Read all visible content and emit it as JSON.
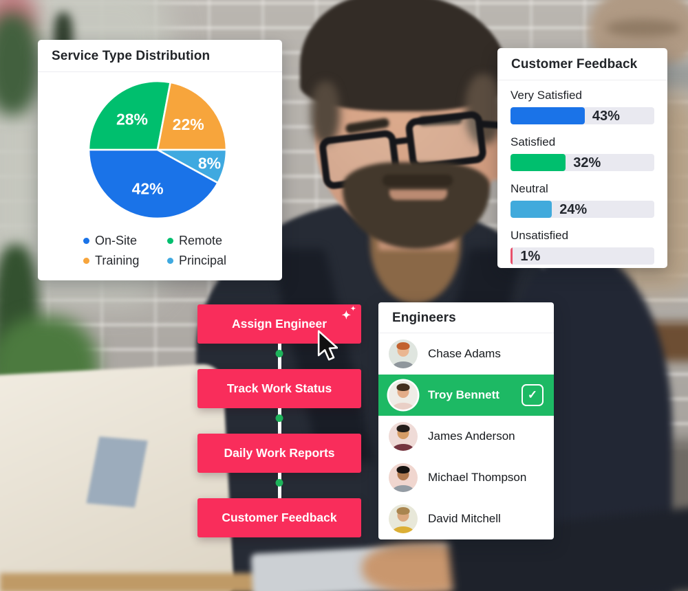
{
  "service_card": {
    "title": "Service Type Distribution",
    "chart_data": {
      "type": "pie",
      "start_angle_deg": 180,
      "value_suffix": "%",
      "slices": [
        {
          "label": "Remote",
          "value": 28,
          "color": "#00BF6E"
        },
        {
          "label": "Training",
          "value": 22,
          "color": "#F7A53C"
        },
        {
          "label": "Principal",
          "value": 8,
          "color": "#3FA9E0"
        },
        {
          "label": "On-Site",
          "value": 42,
          "color": "#1A73E8"
        }
      ],
      "legend": [
        {
          "label": "On-Site",
          "color": "#1A73E8"
        },
        {
          "label": "Remote",
          "color": "#00BF6E"
        },
        {
          "label": "Training",
          "color": "#F7A53C"
        },
        {
          "label": "Principal",
          "color": "#3FA9E0"
        }
      ],
      "legend_position": "bottom"
    }
  },
  "feedback_card": {
    "title": "Customer Feedback",
    "chart_data": {
      "type": "bar",
      "orientation": "horizontal",
      "categories": [
        "Very Satisfied",
        "Satisfied",
        "Neutral",
        "Unsatisfied"
      ],
      "values": [
        43,
        32,
        24,
        1
      ],
      "colors": [
        "#1A73E8",
        "#00BF6E",
        "#41AADC",
        "#E8506B"
      ],
      "value_suffix": "%",
      "track_color": "#E9E9F0"
    }
  },
  "action_menu": {
    "button_color": "#F92D5B",
    "connector_color": "#FFFFFF",
    "connector_dot_color": "#1EB35B",
    "buttons": [
      {
        "label": "Assign Engineer",
        "sparkle": true,
        "cursor": true
      },
      {
        "label": "Track Work Status"
      },
      {
        "label": "Daily Work Reports"
      },
      {
        "label": "Customer Feedback"
      }
    ]
  },
  "engineers_card": {
    "title": "Engineers",
    "selected_color": "#1DB964",
    "checkmark_glyph": "✓",
    "engineers": [
      {
        "name": "Chase Adams",
        "selected": false,
        "avatar": {
          "bg": "#dfe5df",
          "hair": "#c2622f",
          "skin": "#eab691",
          "shirt": "#8f969c"
        }
      },
      {
        "name": "Troy Bennett",
        "selected": true,
        "avatar": {
          "bg": "#efece6",
          "hair": "#43301f",
          "skin": "#e3ad89",
          "shirt": "#e9cfc6"
        }
      },
      {
        "name": "James Anderson",
        "selected": false,
        "avatar": {
          "bg": "#efdbd7",
          "hair": "#241d1a",
          "skin": "#d59c66",
          "shirt": "#74343f"
        }
      },
      {
        "name": "Michael Thompson",
        "selected": false,
        "avatar": {
          "bg": "#f0d6cf",
          "hair": "#181310",
          "skin": "#b27a50",
          "shirt": "#949ca4"
        }
      },
      {
        "name": "David Mitchell",
        "selected": false,
        "avatar": {
          "bg": "#e8e8d9",
          "hair": "#a9854f",
          "skin": "#dba87e",
          "shirt": "#dcaf35"
        }
      }
    ]
  },
  "icons": {
    "sparkle_glyph": "✦",
    "cursor_icon": "arrow-pointer"
  }
}
